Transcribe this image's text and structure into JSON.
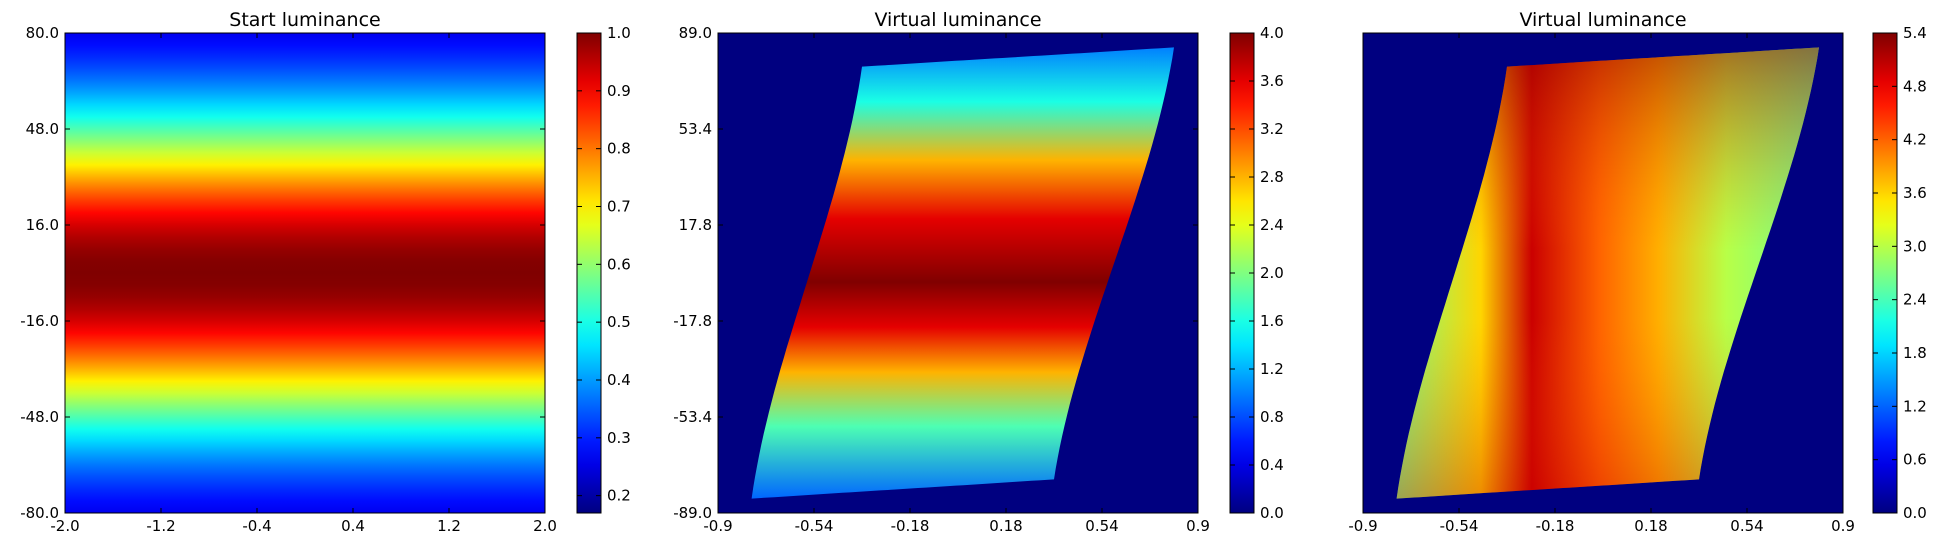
{
  "chart_data": [
    {
      "type": "heatmap",
      "title": "Start luminance",
      "xlabel": "",
      "ylabel": "",
      "xlim": [
        -2.0,
        2.0
      ],
      "ylim": [
        -80.0,
        80.0
      ],
      "x_ticks": [
        "-2.0",
        "-1.2",
        "-0.4",
        "0.4",
        "1.2",
        "2.0"
      ],
      "y_ticks": [
        "80.0",
        "48.0",
        "16.0",
        "-16.0",
        "-48.0",
        "-80.0"
      ],
      "colormap": "jet",
      "colorbar": {
        "range": [
          0.17,
          1.0
        ],
        "ticks": [
          "1.0",
          "0.9",
          "0.8",
          "0.7",
          "0.6",
          "0.5",
          "0.4",
          "0.3",
          "0.2"
        ]
      },
      "field": "horizontal bands: luminance peaks at 1.0 near y=0 and falls to about 0.17 at y=±80"
    },
    {
      "type": "heatmap",
      "title": "Virtual luminance",
      "xlabel": "",
      "ylabel": "",
      "xlim": [
        -0.9,
        0.9
      ],
      "ylim": [
        -89.0,
        89.0
      ],
      "x_ticks": [
        "-0.9",
        "-0.54",
        "-0.18",
        "0.18",
        "0.54",
        "0.9"
      ],
      "y_ticks": [
        "89.0",
        "53.4",
        "17.8",
        "-17.8",
        "-53.4",
        "-89.0"
      ],
      "colormap": "jet",
      "colorbar": {
        "range": [
          0.0,
          4.0
        ],
        "ticks": [
          "4.0",
          "3.6",
          "3.2",
          "2.8",
          "2.4",
          "2.0",
          "1.6",
          "1.2",
          "0.8",
          "0.4",
          "0.0"
        ]
      },
      "background_value": 0.0,
      "field": "S-shaped sheared region with horizontal bands; maximum about 4.0 near y=-5, edges about 0.8-1.0"
    },
    {
      "type": "heatmap",
      "title": "Virtual luminance",
      "xlabel": "",
      "ylabel": "",
      "xlim": [
        -0.9,
        0.9
      ],
      "ylim": [
        -89.0,
        89.0
      ],
      "x_ticks": [
        "-0.9",
        "-0.54",
        "-0.18",
        "0.18",
        "0.54",
        "0.9"
      ],
      "y_ticks": [],
      "colormap": "jet",
      "colorbar": {
        "range": [
          0.0,
          5.4
        ],
        "ticks": [
          "5.4",
          "4.8",
          "4.2",
          "3.6",
          "3.0",
          "2.4",
          "1.8",
          "1.2",
          "0.6",
          "0.0"
        ]
      },
      "background_value": 0.0,
      "field": "same S-shaped region; values highest (about 5.4) along the left-top and right-bottom edges, about 2.5 at top-right and bottom-left corners"
    }
  ]
}
